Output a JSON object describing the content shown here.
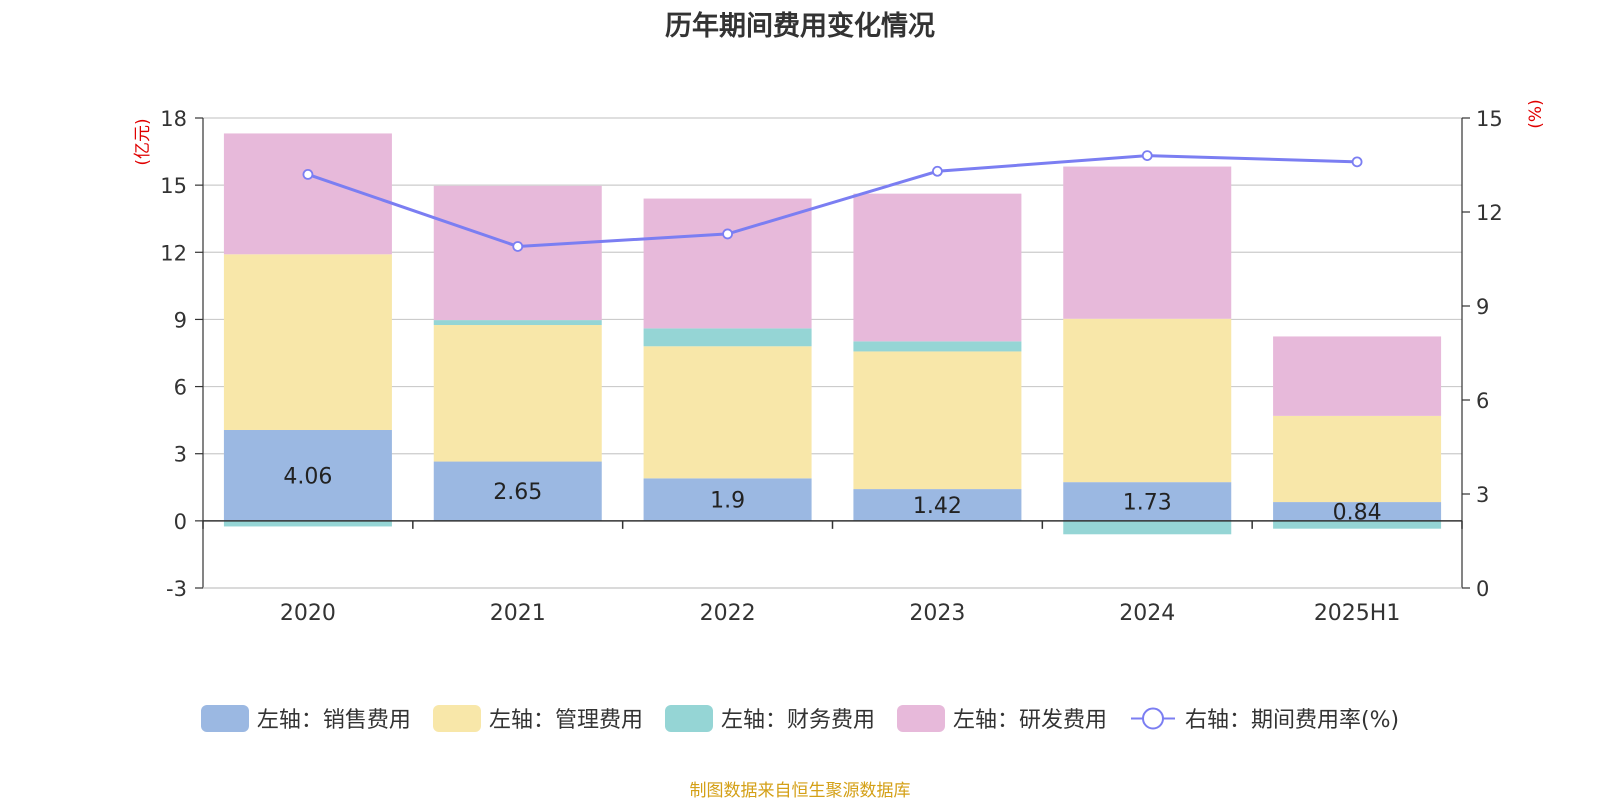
{
  "title": "历年期间费用变化情况",
  "source": "制图数据来自恒生聚源数据库",
  "chart_data": {
    "type": "bar",
    "stacked": true,
    "categories": [
      "2020",
      "2021",
      "2022",
      "2023",
      "2024",
      "2025H1"
    ],
    "left_axis": {
      "unit_label": "(亿元)",
      "ylim": [
        -3,
        18
      ],
      "ticks": [
        -3,
        0,
        3,
        6,
        9,
        12,
        15,
        18
      ]
    },
    "right_axis": {
      "unit_label": "(%)",
      "ylim": [
        0,
        15
      ],
      "ticks": [
        0,
        3,
        6,
        9,
        12,
        15
      ]
    },
    "series": [
      {
        "name": "左轴：销售费用",
        "color": "#9bb8e2",
        "values": [
          4.06,
          2.65,
          1.9,
          1.42,
          1.73,
          0.84
        ],
        "show_labels": true
      },
      {
        "name": "左轴：管理费用",
        "color": "#f8e7a9",
        "values": [
          7.85,
          6.1,
          5.9,
          6.15,
          7.3,
          3.85
        ]
      },
      {
        "name": "左轴：财务费用",
        "color": "#95d5d5",
        "values": [
          -0.25,
          0.22,
          0.8,
          0.45,
          -0.6,
          -0.35
        ]
      },
      {
        "name": "左轴：研发费用",
        "color": "#e7b9da",
        "values": [
          5.4,
          6.0,
          5.8,
          6.6,
          6.8,
          3.55
        ]
      }
    ],
    "line_series": {
      "name": "右轴：期间费用率(%)",
      "color": "#7b7ef2",
      "axis": "right",
      "values": [
        13.2,
        10.9,
        11.3,
        13.3,
        13.8,
        13.6
      ]
    },
    "grid": true,
    "legend_position": "bottom"
  }
}
